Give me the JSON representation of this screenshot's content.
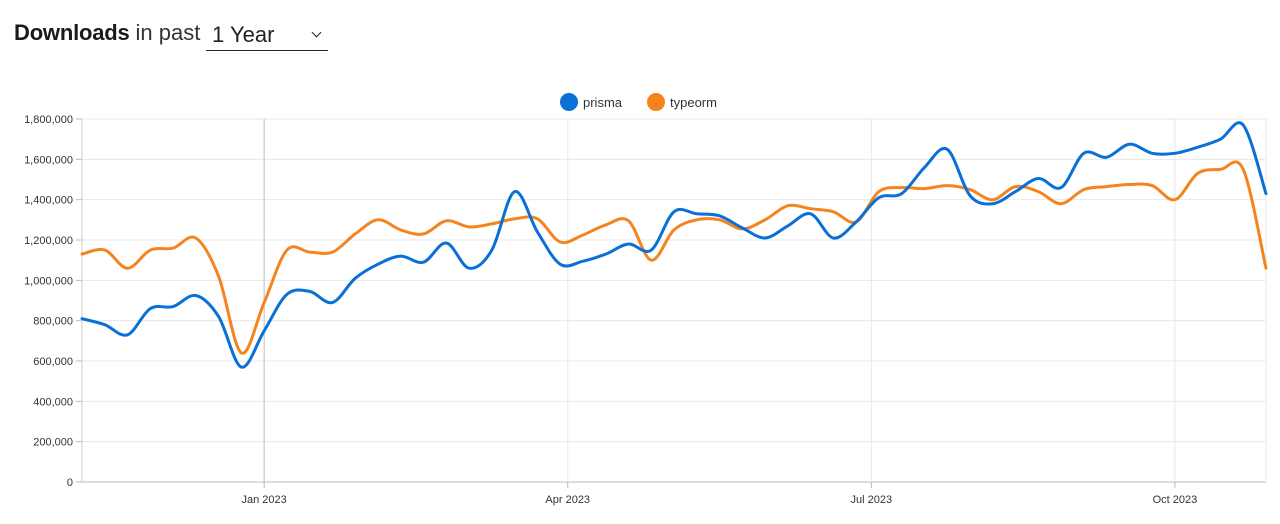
{
  "header": {
    "title": "Downloads",
    "subtitle": "in past",
    "period": "1 Year"
  },
  "chart_data": {
    "type": "line",
    "title": "",
    "xlabel": "",
    "ylabel": "",
    "ylim": [
      0,
      1800000
    ],
    "yticks": [
      "0",
      "200,000",
      "400,000",
      "600,000",
      "800,000",
      "1,000,000",
      "1,200,000",
      "1,400,000",
      "1,600,000",
      "1,800,000"
    ],
    "xticks": [
      {
        "label": "Jan 2023",
        "week": 12
      },
      {
        "label": "Apr 2023",
        "week": 32
      },
      {
        "label": "Jul 2023",
        "week": 52
      },
      {
        "label": "Oct 2023",
        "week": 72
      }
    ],
    "grid": true,
    "legend_position": "top-center",
    "series": [
      {
        "name": "prisma",
        "color": "#0a6fd6",
        "values": [
          810000,
          780000,
          730000,
          860000,
          870000,
          925000,
          820000,
          570000,
          750000,
          930000,
          945000,
          890000,
          1010000,
          1080000,
          1120000,
          1090000,
          1185000,
          1060000,
          1150000,
          1440000,
          1240000,
          1080000,
          1095000,
          1130000,
          1180000,
          1150000,
          1340000,
          1330000,
          1320000,
          1260000,
          1210000,
          1270000,
          1330000,
          1210000,
          1290000,
          1410000,
          1430000,
          1560000,
          1650000,
          1420000,
          1380000,
          1440000,
          1505000,
          1460000,
          1630000,
          1610000,
          1675000,
          1630000,
          1630000,
          1660000,
          1700000,
          1770000,
          1430000
        ],
        "weeks_step": 1.5
      },
      {
        "name": "typeorm",
        "color": "#f5841f",
        "values": [
          1130000,
          1150000,
          1060000,
          1150000,
          1160000,
          1210000,
          1020000,
          640000,
          890000,
          1150000,
          1140000,
          1140000,
          1230000,
          1300000,
          1250000,
          1230000,
          1295000,
          1265000,
          1280000,
          1305000,
          1305000,
          1190000,
          1225000,
          1275000,
          1295000,
          1100000,
          1250000,
          1300000,
          1300000,
          1255000,
          1300000,
          1370000,
          1355000,
          1340000,
          1290000,
          1440000,
          1460000,
          1455000,
          1470000,
          1450000,
          1400000,
          1465000,
          1440000,
          1380000,
          1450000,
          1465000,
          1475000,
          1470000,
          1400000,
          1530000,
          1550000,
          1550000,
          1060000
        ],
        "weeks_step": 1.5
      }
    ]
  }
}
